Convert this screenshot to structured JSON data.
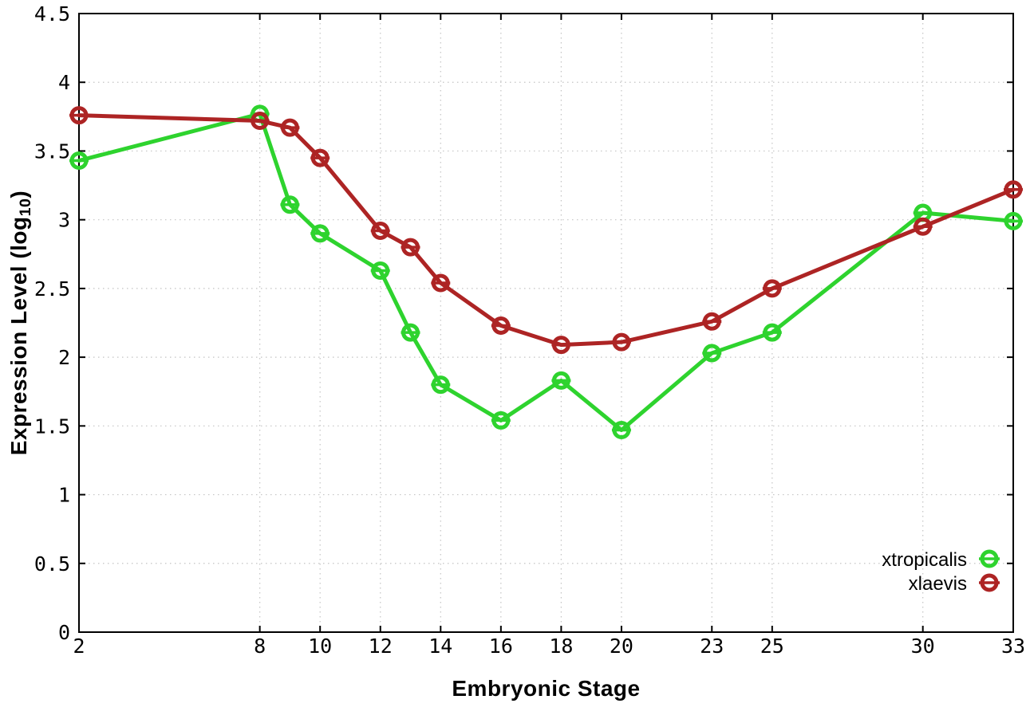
{
  "chart_data": {
    "type": "line",
    "title": "",
    "xlabel": "Embryonic Stage",
    "ylabel": "Expression Level (log10)",
    "ylabel_parts": {
      "prefix": "Expression Level (log",
      "sub": "10",
      "suffix": ")"
    },
    "xlim": [
      2,
      33
    ],
    "ylim": [
      0,
      4.5
    ],
    "grid": true,
    "grid_style": "dotted",
    "grid_color": "#c4c4c4",
    "axis_color": "#000000",
    "background_color": "#ffffff",
    "legend_position": "bottom-right-inside",
    "marker_style": "open-circle-with-errorbar-dash",
    "x": [
      2,
      8,
      9,
      10,
      12,
      13,
      14,
      16,
      18,
      20,
      23,
      25,
      30,
      33
    ],
    "xtick_values": [
      2,
      8,
      10,
      12,
      14,
      16,
      18,
      20,
      23,
      25,
      30,
      33
    ],
    "xtick_labels": [
      "2",
      "8",
      "10",
      "12",
      "14",
      "16",
      "18",
      "20",
      "23",
      "25",
      "30",
      "33"
    ],
    "ytick_values": [
      0,
      0.5,
      1,
      1.5,
      2,
      2.5,
      3,
      3.5,
      4,
      4.5
    ],
    "ytick_labels": [
      "0",
      "0.5",
      "1",
      "1.5",
      "2",
      "2.5",
      "3",
      "3.5",
      "4",
      "4.5"
    ],
    "series": [
      {
        "name": "xtropicalis",
        "color": "#2ed32e",
        "values": [
          3.43,
          3.77,
          3.11,
          2.9,
          2.63,
          2.18,
          1.8,
          1.54,
          1.83,
          1.47,
          2.03,
          2.18,
          3.05,
          2.99
        ]
      },
      {
        "name": "xlaevis",
        "color": "#ad2424",
        "values": [
          3.76,
          3.72,
          3.67,
          3.45,
          2.92,
          2.8,
          2.54,
          2.23,
          2.09,
          2.11,
          2.26,
          2.5,
          2.95,
          3.22
        ]
      }
    ]
  }
}
